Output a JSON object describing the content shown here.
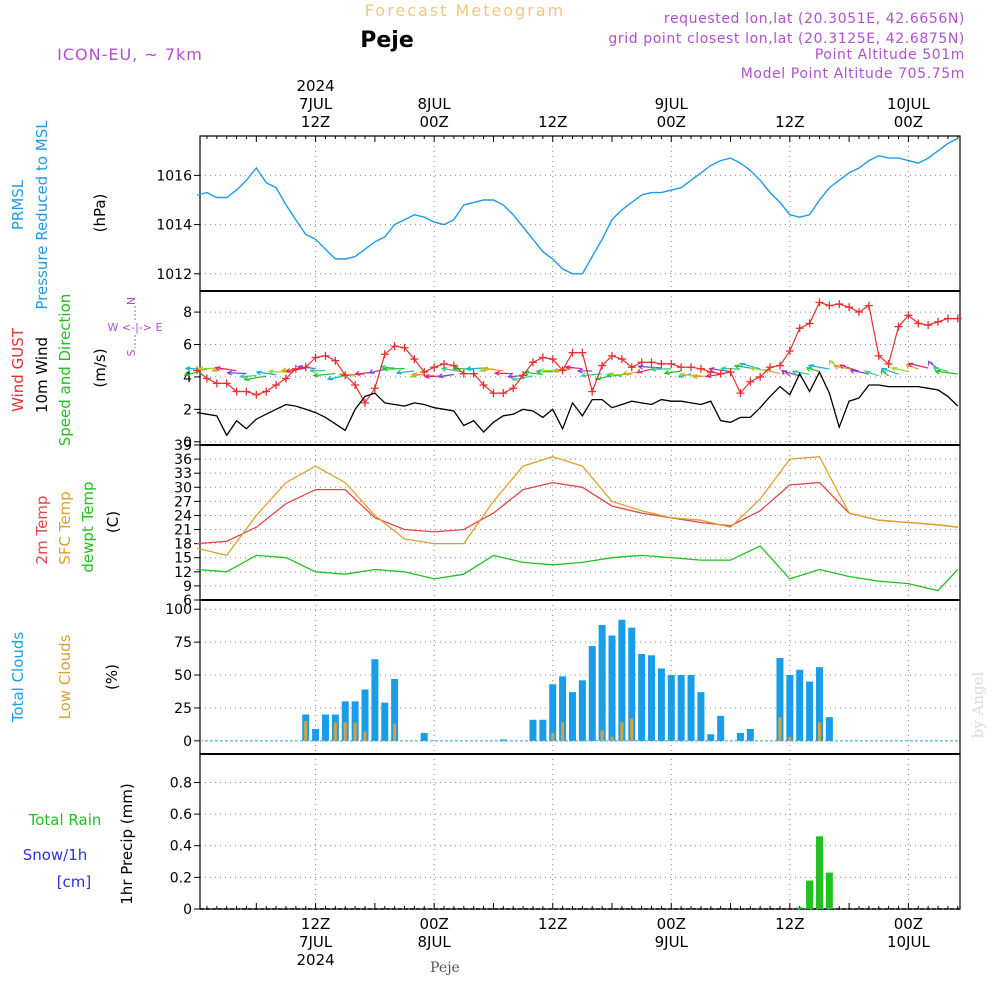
{
  "header": {
    "title_top": "Forecast Meteogram",
    "location": "Peje",
    "model": "ICON-EU, ~ 7km",
    "requested": "requested lon,lat (20.3051E, 42.6656N)",
    "grid_point": "grid point closest lon,lat (20.3125E, 42.6875N)",
    "point_altitude": "Point Altitude 501m",
    "model_altitude": "Model Point Altitude 705.75m",
    "watermark": "by Angel",
    "bottom_location": "Peje"
  },
  "time_axis": {
    "top": [
      {
        "t": 12,
        "lines": [
          "2024",
          "7JUL",
          "12Z"
        ]
      },
      {
        "t": 24,
        "lines": [
          "8JUL",
          "00Z"
        ]
      },
      {
        "t": 36,
        "lines": [
          "12Z"
        ]
      },
      {
        "t": 48,
        "lines": [
          "9JUL",
          "00Z"
        ]
      },
      {
        "t": 60,
        "lines": [
          "12Z"
        ]
      },
      {
        "t": 72,
        "lines": [
          "10JUL",
          "00Z"
        ]
      }
    ],
    "bottom": [
      {
        "t": 12,
        "lines": [
          "12Z",
          "7JUL",
          "2024"
        ]
      },
      {
        "t": 24,
        "lines": [
          "00Z",
          "8JUL"
        ]
      },
      {
        "t": 36,
        "lines": [
          "12Z"
        ]
      },
      {
        "t": 48,
        "lines": [
          "00Z",
          "9JUL"
        ]
      },
      {
        "t": 60,
        "lines": [
          "12Z"
        ]
      },
      {
        "t": 72,
        "lines": [
          "00Z",
          "10JUL"
        ]
      }
    ]
  },
  "panels": {
    "pressure": {
      "label1": "PRMSL",
      "label2": "Pressure Reduced to MSL",
      "unit": "(hPa)"
    },
    "wind": {
      "label_gust": "Wind GUST",
      "label_wind": "10m Wind",
      "label_dir": "Speed and Direction",
      "unit": "(m/s)",
      "compass_n": "N",
      "compass_s": "S",
      "compass_ew": "W <-|-> E"
    },
    "temp": {
      "label_t2m": "2m Temp",
      "label_sfc": "SFC Temp",
      "label_dew": "dewpt Temp",
      "unit": "(C)"
    },
    "clouds": {
      "label_total": "Total Clouds",
      "label_low": "Low Clouds",
      "unit": "(%)"
    },
    "precip": {
      "label_rain": "Total  Rain",
      "label_snow": "Snow/1h",
      "label_cm": "[cm]",
      "label_axis": "1hr Precip (mm)"
    }
  },
  "colors": {
    "pressure": "#1e9be8",
    "gust": "#e83030",
    "wind": "#000000",
    "t2m": "#e04848",
    "sfc": "#e0a030",
    "dew": "#22c022",
    "total_clouds": "#1a9de8",
    "low_clouds": "#d8a238",
    "rain": "#20c020",
    "snow": "#3030e0",
    "purple": "#b050d0"
  },
  "chart_data": [
    {
      "type": "line",
      "name_ref": "pressure",
      "ylim": [
        1011.3,
        1017.6
      ],
      "yticks": [
        1012,
        1014,
        1016
      ],
      "series": [
        {
          "x": [
            0,
            1,
            2,
            3,
            4,
            5,
            6,
            7,
            8,
            9,
            10,
            11,
            12,
            13,
            14,
            15,
            16,
            17,
            18,
            19,
            20,
            21,
            22,
            23,
            24,
            25,
            26,
            27,
            28,
            29,
            30,
            31,
            32,
            33,
            34,
            35,
            36,
            37,
            38,
            39,
            40,
            41,
            42,
            43,
            44,
            45,
            46,
            47,
            48,
            49,
            50,
            51,
            52,
            53,
            54,
            55,
            56,
            57,
            58,
            59,
            60,
            61,
            62,
            63,
            64,
            65,
            66,
            67,
            68,
            69,
            70,
            71,
            72,
            73,
            74,
            75,
            76,
            77
          ],
          "values": [
            1015.2,
            1015.3,
            1015.1,
            1015.1,
            1015.4,
            1015.8,
            1016.3,
            1015.7,
            1015.5,
            1014.8,
            1014.2,
            1013.6,
            1013.4,
            1013.0,
            1012.6,
            1012.6,
            1012.7,
            1013.0,
            1013.3,
            1013.5,
            1014.0,
            1014.2,
            1014.4,
            1014.3,
            1014.1,
            1014.0,
            1014.2,
            1014.8,
            1014.9,
            1015.0,
            1015.0,
            1014.8,
            1014.4,
            1013.9,
            1013.4,
            1012.9,
            1012.6,
            1012.2,
            1012.0,
            1012.0,
            1012.7,
            1013.4,
            1014.2,
            1014.6,
            1014.9,
            1015.2,
            1015.3,
            1015.3,
            1015.4,
            1015.5,
            1015.8,
            1016.1,
            1016.4,
            1016.6,
            1016.7,
            1016.5,
            1016.2,
            1015.8,
            1015.3,
            1014.9,
            1014.4,
            1014.3,
            1014.4,
            1015.0,
            1015.5,
            1015.8,
            1016.1,
            1016.3,
            1016.6,
            1016.8,
            1016.7,
            1016.7,
            1016.6,
            1016.5,
            1016.7,
            1017.0,
            1017.3,
            1017.5
          ]
        }
      ]
    },
    {
      "type": "line",
      "name_ref": "wind",
      "ylim": [
        -0.2,
        9.3
      ],
      "yticks": [
        0,
        2,
        4,
        6,
        8
      ],
      "series": [
        {
          "key": "gust",
          "x": [
            0,
            1,
            2,
            3,
            4,
            5,
            6,
            7,
            8,
            9,
            10,
            11,
            12,
            13,
            14,
            15,
            16,
            17,
            18,
            19,
            20,
            21,
            22,
            23,
            24,
            25,
            26,
            27,
            28,
            29,
            30,
            31,
            32,
            33,
            34,
            35,
            36,
            37,
            38,
            39,
            40,
            41,
            42,
            43,
            44,
            45,
            46,
            47,
            48,
            49,
            50,
            51,
            52,
            53,
            54,
            55,
            56,
            57,
            58,
            59,
            60,
            61,
            62,
            63,
            64,
            65,
            66,
            67,
            68,
            69,
            70,
            71,
            72,
            73,
            74,
            75,
            76,
            77
          ],
          "values": [
            4.4,
            3.9,
            3.6,
            3.6,
            3.1,
            3.1,
            2.9,
            3.1,
            3.5,
            3.9,
            4.5,
            4.6,
            5.2,
            5.3,
            5.0,
            4.1,
            3.5,
            2.4,
            3.3,
            5.4,
            5.9,
            5.8,
            5.1,
            4.3,
            4.6,
            4.8,
            4.7,
            4.2,
            4.2,
            3.5,
            3.0,
            3.0,
            3.3,
            4.1,
            4.9,
            5.2,
            5.1,
            4.4,
            5.5,
            5.5,
            3.1,
            4.7,
            5.3,
            5.1,
            4.6,
            4.9,
            4.9,
            4.8,
            4.8,
            4.6,
            4.6,
            4.5,
            4.3,
            4.2,
            4.3,
            3.0,
            3.7,
            4.0,
            4.6,
            4.7,
            5.6,
            7.0,
            7.3,
            8.6,
            8.4,
            8.5,
            8.3,
            8.0,
            8.4,
            5.3,
            4.8,
            7.1,
            7.8,
            7.3,
            7.2,
            7.4,
            7.6,
            7.6
          ]
        },
        {
          "key": "wind",
          "x": [
            0,
            1,
            2,
            3,
            4,
            5,
            6,
            7,
            8,
            9,
            10,
            11,
            12,
            13,
            14,
            15,
            16,
            17,
            18,
            19,
            20,
            21,
            22,
            23,
            24,
            25,
            26,
            27,
            28,
            29,
            30,
            31,
            32,
            33,
            34,
            35,
            36,
            37,
            38,
            39,
            40,
            41,
            42,
            43,
            44,
            45,
            46,
            47,
            48,
            49,
            50,
            51,
            52,
            53,
            54,
            55,
            56,
            57,
            58,
            59,
            60,
            61,
            62,
            63,
            64,
            65,
            66,
            67,
            68,
            69,
            70,
            71,
            72,
            73,
            74,
            75,
            76,
            77
          ],
          "values": [
            1.8,
            1.7,
            1.6,
            0.4,
            1.3,
            0.8,
            1.4,
            1.7,
            2.0,
            2.3,
            2.2,
            2.0,
            1.8,
            1.5,
            1.1,
            0.7,
            2.0,
            2.8,
            3.0,
            2.4,
            2.3,
            2.2,
            2.4,
            2.3,
            2.1,
            2.0,
            1.9,
            1.0,
            1.3,
            0.6,
            1.2,
            1.6,
            1.7,
            2.0,
            1.9,
            1.5,
            2.0,
            0.8,
            2.4,
            1.6,
            2.6,
            2.6,
            2.1,
            2.3,
            2.5,
            2.4,
            2.3,
            2.6,
            2.5,
            2.5,
            2.4,
            2.3,
            2.5,
            1.3,
            1.2,
            1.5,
            1.5,
            2.1,
            2.8,
            3.4,
            2.9,
            4.2,
            3.1,
            4.3,
            3.0,
            0.9,
            2.5,
            2.7,
            3.5,
            3.5,
            3.4,
            3.4,
            3.4,
            3.4,
            3.3,
            3.2,
            2.8,
            2.2
          ]
        }
      ]
    },
    {
      "type": "line",
      "name_ref": "temp",
      "ylim": [
        6,
        39
      ],
      "yticks": [
        6,
        9,
        12,
        15,
        18,
        21,
        24,
        27,
        30,
        33,
        36,
        39
      ],
      "series": [
        {
          "key": "t2m",
          "x": [
            0,
            3,
            6,
            9,
            12,
            15,
            18,
            21,
            24,
            27,
            30,
            33,
            36,
            39,
            42,
            45,
            48,
            51,
            54,
            57,
            60,
            63,
            66,
            69,
            72,
            75,
            77
          ],
          "values": [
            18.0,
            18.5,
            21.5,
            26.5,
            29.5,
            29.5,
            23.5,
            21.0,
            20.5,
            21.0,
            24.5,
            29.5,
            31.0,
            30.0,
            26.0,
            24.5,
            23.5,
            22.5,
            21.8,
            25.0,
            30.5,
            31.0,
            24.5,
            23.0,
            22.5,
            22.0,
            21.5
          ]
        },
        {
          "key": "sfc",
          "x": [
            0,
            3,
            6,
            9,
            12,
            15,
            18,
            21,
            24,
            27,
            30,
            33,
            36,
            39,
            42,
            45,
            48,
            51,
            54,
            57,
            60,
            63,
            66,
            69,
            72,
            75,
            77
          ],
          "values": [
            17.0,
            15.5,
            24.0,
            31.0,
            34.5,
            31.0,
            24.0,
            19.0,
            18.0,
            18.0,
            27.0,
            34.5,
            36.5,
            34.5,
            27.0,
            25.0,
            23.5,
            23.0,
            21.5,
            27.5,
            36.0,
            36.5,
            24.5,
            23.0,
            22.5,
            22.0,
            21.5
          ]
        },
        {
          "key": "dew",
          "x": [
            0,
            3,
            6,
            9,
            12,
            15,
            18,
            21,
            24,
            27,
            30,
            33,
            36,
            39,
            42,
            45,
            48,
            51,
            54,
            57,
            60,
            63,
            66,
            69,
            72,
            75,
            77
          ],
          "values": [
            12.5,
            12.0,
            15.5,
            15.0,
            12.0,
            11.5,
            12.5,
            12.0,
            10.5,
            11.5,
            15.5,
            14.0,
            13.5,
            14.0,
            15.0,
            15.5,
            15.0,
            14.5,
            14.5,
            17.5,
            10.5,
            12.5,
            11.0,
            10.0,
            9.5,
            8.0,
            12.5
          ]
        }
      ]
    },
    {
      "type": "bar",
      "name_ref": "clouds",
      "ylim": [
        -10,
        107
      ],
      "yticks": [
        0,
        25,
        50,
        75,
        100
      ],
      "series": [
        {
          "key": "total",
          "x": [
            11,
            12,
            13,
            14,
            15,
            16,
            17,
            18,
            19,
            20,
            23,
            31,
            34,
            35,
            36,
            37,
            38,
            39,
            40,
            41,
            42,
            43,
            44,
            45,
            46,
            47,
            48,
            49,
            50,
            51,
            52,
            53,
            55,
            56,
            59,
            60,
            61,
            62,
            63,
            64
          ],
          "values": [
            20,
            9,
            20,
            20,
            30,
            30,
            39,
            62,
            29,
            47,
            6,
            1,
            16,
            16,
            43,
            49,
            37,
            46,
            72,
            88,
            80,
            92,
            86,
            66,
            65,
            55,
            50,
            50,
            50,
            37,
            5,
            19,
            6,
            9,
            63,
            50,
            54,
            45,
            56,
            18
          ]
        },
        {
          "key": "low",
          "x": [
            11,
            12,
            13,
            14,
            15,
            16,
            17,
            18,
            19,
            20,
            23,
            31,
            34,
            35,
            36,
            37,
            38,
            39,
            40,
            41,
            42,
            43,
            44,
            45,
            46,
            47,
            48,
            49,
            50,
            51,
            52,
            53,
            55,
            56,
            59,
            60,
            61,
            62,
            63,
            64
          ],
          "values": [
            15,
            0,
            0,
            14,
            14,
            14,
            7,
            0,
            0,
            13,
            0,
            0,
            0,
            0,
            6,
            14,
            0,
            0,
            0,
            8,
            3,
            14,
            17,
            0,
            0,
            0,
            0,
            0,
            0,
            0,
            0,
            0,
            0,
            0,
            18,
            3,
            0,
            0,
            14,
            0
          ]
        }
      ]
    },
    {
      "type": "bar",
      "name_ref": "precip",
      "ylim": [
        0,
        0.98
      ],
      "yticks": [
        0,
        0.2,
        0.4,
        0.6,
        0.8
      ],
      "series": [
        {
          "key": "rain",
          "x": [
            61,
            62,
            63,
            64
          ],
          "values": [
            0.01,
            0.18,
            0.46,
            0.23
          ]
        }
      ]
    }
  ]
}
